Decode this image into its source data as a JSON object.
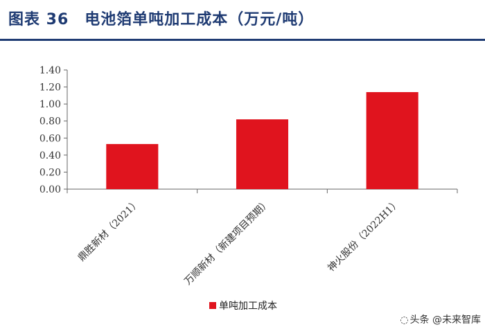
{
  "title": "图表 36　电池箔单吨加工成本（万元/吨）",
  "chart_data": {
    "type": "bar",
    "categories": [
      "鼎胜新材（2021）",
      "万顺新材（新建项目预期）",
      "神火股份（2022H1）"
    ],
    "series": [
      {
        "name": "单吨加工成本",
        "values": [
          0.53,
          0.82,
          1.14
        ]
      }
    ],
    "yticks": [
      "0.00",
      "0.20",
      "0.40",
      "0.60",
      "0.80",
      "1.00",
      "1.20",
      "1.40"
    ],
    "ylim": [
      0,
      1.4
    ],
    "grid": false,
    "legend": "bottom",
    "bar_color": "#e0141e"
  },
  "watermark": {
    "text": "头条 @未来智库",
    "icon": "wechat-icon"
  }
}
